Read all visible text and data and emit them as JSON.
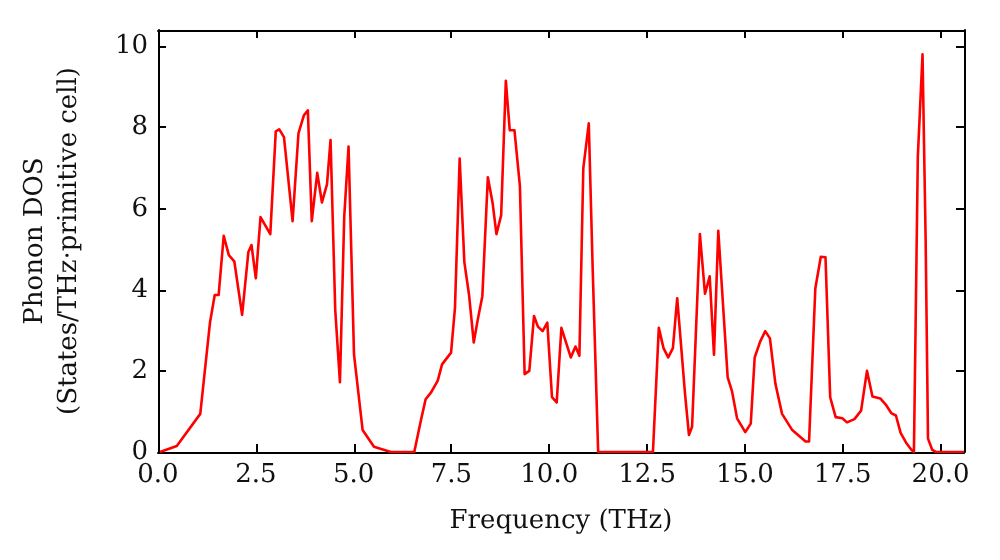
{
  "chart_data": {
    "type": "line",
    "xlabel": "Frequency (THz)",
    "ylabel": "Phonon DOS\n(States/THz·primitive cell)",
    "xlim": [
      0,
      20.6
    ],
    "ylim": [
      0,
      10.4
    ],
    "xticks": [
      {
        "value": 0,
        "label": "0.0"
      },
      2.5,
      {
        "value": 5,
        "label": "5.0"
      },
      7.5,
      {
        "value": 10,
        "label": "10.0"
      },
      12.5,
      {
        "value": 15,
        "label": "15.0"
      },
      17.5,
      {
        "value": 20,
        "label": "20.0"
      }
    ],
    "yticks": [
      0,
      2,
      4,
      6,
      8,
      10
    ],
    "marker": "none",
    "line_style": "solid",
    "series": [
      {
        "color": "#ff0000",
        "x": [
          0.05,
          0.48,
          1.08,
          1.33,
          1.45,
          1.55,
          1.68,
          1.81,
          1.95,
          2.15,
          2.31,
          2.39,
          2.5,
          2.62,
          2.87,
          3.01,
          3.1,
          3.22,
          3.44,
          3.59,
          3.73,
          3.83,
          3.93,
          4.07,
          4.19,
          4.32,
          4.41,
          4.53,
          4.65,
          4.76,
          4.87,
          5.01,
          5.23,
          5.52,
          5.95,
          6.55,
          6.72,
          6.84,
          6.98,
          7.15,
          7.26,
          7.49,
          7.59,
          7.71,
          7.83,
          7.95,
          8.07,
          8.17,
          8.29,
          8.43,
          8.55,
          8.65,
          8.77,
          8.89,
          8.99,
          9.11,
          9.25,
          9.37,
          9.49,
          9.61,
          9.71,
          9.83,
          9.95,
          10.07,
          10.19,
          10.31,
          10.55,
          10.67,
          10.77,
          10.87,
          11.01,
          11.11,
          11.25,
          12.65,
          12.8,
          12.92,
          13.04,
          13.16,
          13.27,
          13.47,
          13.57,
          13.65,
          13.85,
          13.98,
          14.1,
          14.21,
          14.32,
          14.56,
          14.67,
          14.8,
          15.01,
          15.15,
          15.25,
          15.39,
          15.52,
          15.64,
          15.78,
          15.95,
          16.21,
          16.55,
          16.64,
          16.8,
          16.94,
          17.06,
          17.18,
          17.32,
          17.49,
          17.61,
          17.8,
          17.97,
          18.12,
          18.26,
          18.46,
          18.6,
          18.74,
          18.86,
          18.98,
          19.12,
          19.26,
          19.32,
          19.42,
          19.54,
          19.62,
          19.68,
          19.79,
          19.88,
          20.6
        ],
        "values": [
          0,
          0.15,
          0.94,
          3.2,
          3.87,
          3.87,
          5.33,
          4.85,
          4.7,
          3.38,
          4.93,
          5.1,
          4.28,
          5.79,
          5.37,
          7.9,
          7.95,
          7.76,
          5.69,
          7.85,
          8.3,
          8.42,
          5.69,
          6.88,
          6.15,
          6.6,
          7.69,
          3.5,
          1.72,
          5.8,
          7.53,
          2.4,
          0.54,
          0.13,
          0,
          0,
          0.78,
          1.3,
          1.47,
          1.76,
          2.16,
          2.45,
          3.55,
          7.23,
          4.68,
          3.87,
          2.7,
          3.25,
          3.84,
          6.77,
          6.15,
          5.37,
          5.83,
          9.15,
          7.93,
          7.93,
          6.55,
          1.92,
          2.0,
          3.35,
          3.09,
          2.98,
          3.19,
          1.35,
          1.22,
          3.06,
          2.33,
          2.6,
          2.37,
          6.99,
          8.1,
          4.5,
          0,
          0,
          3.06,
          2.56,
          2.33,
          2.56,
          3.79,
          1.43,
          0.42,
          0.62,
          5.37,
          3.9,
          4.33,
          2.4,
          5.45,
          1.84,
          1.5,
          0.83,
          0.49,
          0.7,
          2.33,
          2.72,
          2.98,
          2.8,
          1.68,
          0.94,
          0.54,
          0.26,
          0.26,
          4.03,
          4.81,
          4.8,
          1.35,
          0.86,
          0.83,
          0.73,
          0.81,
          1.02,
          2.0,
          1.37,
          1.32,
          1.17,
          0.96,
          0.9,
          0.47,
          0.23,
          0.05,
          0,
          7.28,
          9.8,
          5.2,
          0.33,
          0.05,
          0,
          0
        ]
      }
    ]
  }
}
